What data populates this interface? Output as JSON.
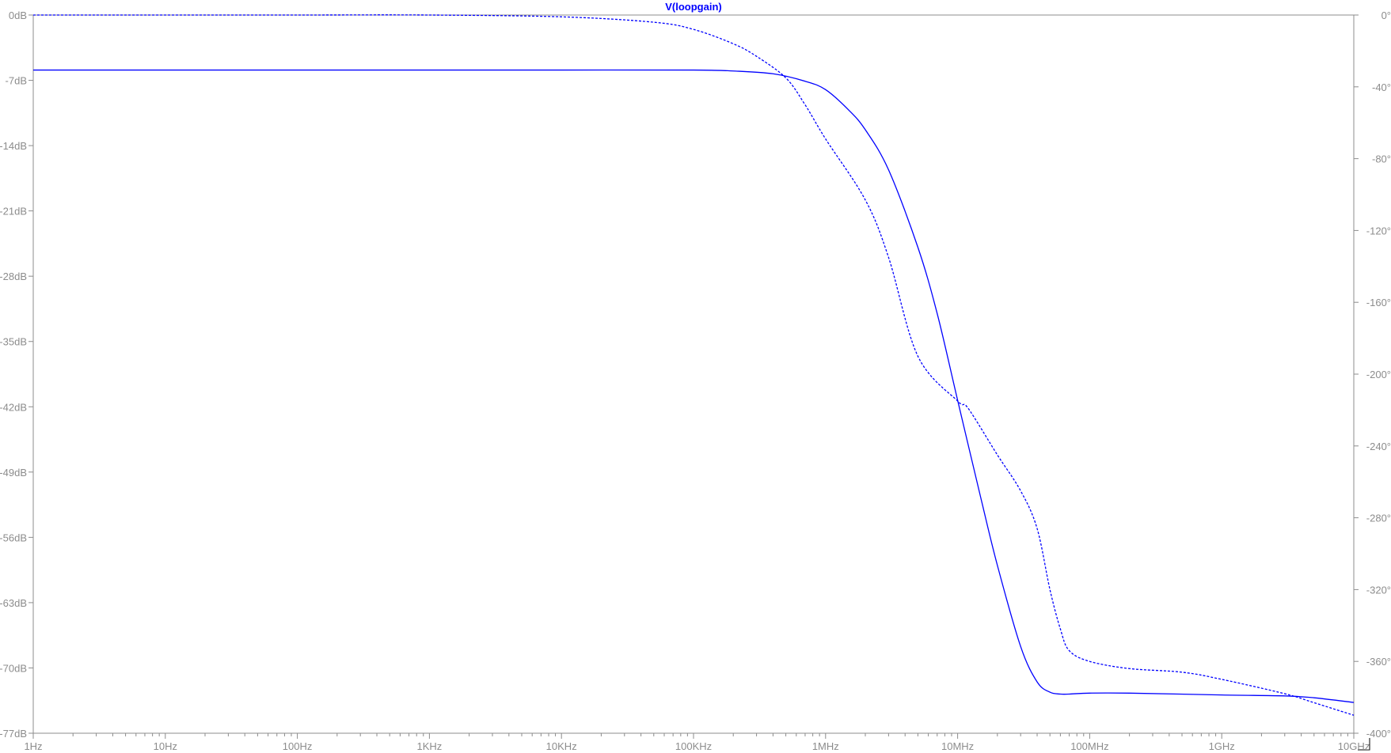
{
  "colors": {
    "background": "#ffffff",
    "axis": "#8c8c8c",
    "tick_text": "#8c8c8c",
    "trace": "#0000ff"
  },
  "chart_data": {
    "type": "line",
    "title": "V(loopgain)",
    "x_scale": "log",
    "x_unit": "Hz",
    "xlim": [
      1,
      10000000000
    ],
    "x_ticks": [
      1,
      10,
      100,
      1000,
      10000,
      100000,
      1000000,
      10000000,
      100000000,
      1000000000,
      10000000000
    ],
    "x_tick_labels": [
      "1Hz",
      "10Hz",
      "100Hz",
      "1KHz",
      "10KHz",
      "100KHz",
      "1MHz",
      "10MHz",
      "100MHz",
      "1GHz",
      "10GHz"
    ],
    "y_left": {
      "unit": "dB",
      "range": [
        -77,
        0
      ],
      "ticks": [
        0,
        -7,
        -14,
        -21,
        -28,
        -35,
        -42,
        -49,
        -56,
        -63,
        -70,
        -77
      ],
      "tick_labels": [
        "0dB",
        "-7dB",
        "-14dB",
        "-21dB",
        "-28dB",
        "-35dB",
        "-42dB",
        "-49dB",
        "-56dB",
        "-63dB",
        "-70dB",
        "-77dB"
      ]
    },
    "y_right": {
      "unit": "°",
      "range": [
        -400,
        0
      ],
      "ticks": [
        0,
        -40,
        -80,
        -120,
        -160,
        -200,
        -240,
        -280,
        -320,
        -360,
        -400
      ],
      "tick_labels": [
        "0°",
        "-40°",
        "-80°",
        "-120°",
        "-160°",
        "-200°",
        "-240°",
        "-280°",
        "-320°",
        "-360°",
        "-400°"
      ]
    },
    "grid": false,
    "legend": "none",
    "series": [
      {
        "quantity": "magnitude",
        "axis": "left",
        "style": "solid",
        "color": "#0000ff",
        "x": [
          1,
          10,
          100,
          1000,
          10000,
          100000,
          200000,
          400000,
          700000,
          1000000,
          1500000,
          2000000,
          3000000,
          5000000,
          7000000,
          10000000,
          15000000,
          20000000,
          30000000,
          40000000,
          50000000,
          60000000,
          70000000,
          100000000,
          200000000,
          1000000000,
          3000000000,
          5000000000,
          10000000000
        ],
        "values": [
          -5.9,
          -5.9,
          -5.9,
          -5.9,
          -5.9,
          -5.9,
          -6.0,
          -6.3,
          -7.1,
          -8.0,
          -10.2,
          -12.3,
          -16.6,
          -24.9,
          -32.0,
          -41.3,
          -51.8,
          -59.0,
          -67.7,
          -71.5,
          -72.6,
          -72.8,
          -72.8,
          -72.7,
          -72.7,
          -72.9,
          -73.0,
          -73.2,
          -73.7
        ]
      },
      {
        "quantity": "phase",
        "axis": "right",
        "style": "dotted",
        "color": "#0000ff",
        "x": [
          1,
          10,
          100,
          1000,
          10000,
          50000,
          100000,
          200000,
          300000,
          500000,
          700000,
          1000000,
          2000000,
          3000000,
          5000000,
          10000000,
          12000000,
          20000000,
          30000000,
          40000000,
          50000000,
          60000000,
          70000000,
          100000000,
          200000000,
          500000000,
          1000000000,
          3000000000,
          5000000000,
          10000000000
        ],
        "values": [
          0,
          0,
          0,
          0,
          -1,
          -4,
          -8,
          -16,
          -23,
          -35,
          -50,
          -69,
          -103,
          -135,
          -190,
          -215,
          -219,
          -245,
          -265,
          -286,
          -320,
          -342,
          -354,
          -360,
          -364,
          -366,
          -370,
          -378,
          -383,
          -390
        ]
      }
    ]
  }
}
